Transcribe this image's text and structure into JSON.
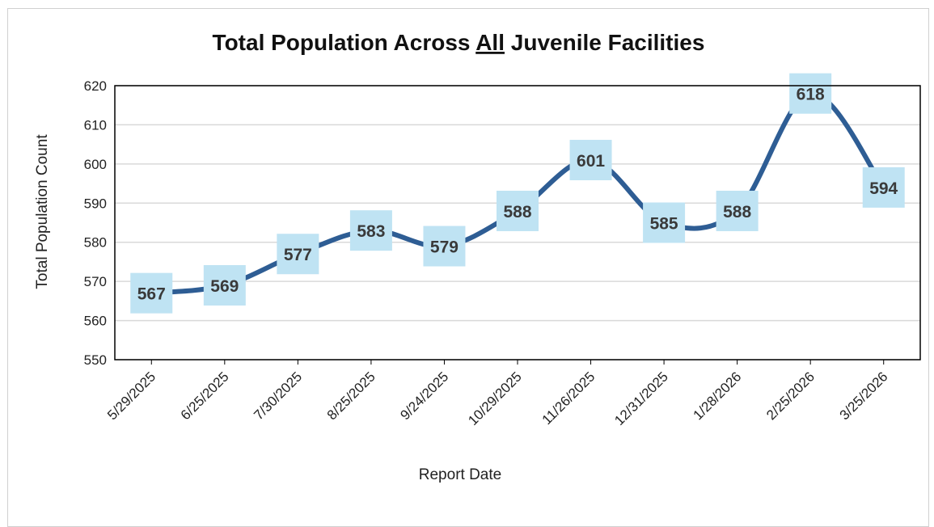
{
  "chart_data": {
    "type": "line",
    "title_parts": [
      "Total Population Across ",
      "All",
      " Juvenile Facilities"
    ],
    "xlabel": "Report Date",
    "ylabel": "Total Population Count",
    "categories": [
      "5/29/2025",
      "6/25/2025",
      "7/30/2025",
      "8/25/2025",
      "9/24/2025",
      "10/29/2025",
      "11/26/2025",
      "12/31/2025",
      "1/28/2026",
      "2/25/2026",
      "3/25/2026"
    ],
    "values": [
      567,
      569,
      577,
      583,
      579,
      588,
      601,
      585,
      588,
      618,
      594
    ],
    "ylim": [
      550,
      620
    ],
    "yticks": [
      550,
      560,
      570,
      580,
      590,
      600,
      610,
      620
    ],
    "grid": true,
    "smooth": true,
    "colors": {
      "line": "#2e5d94",
      "label_box": "#bfe3f3",
      "grid": "#d9d9d9"
    }
  }
}
